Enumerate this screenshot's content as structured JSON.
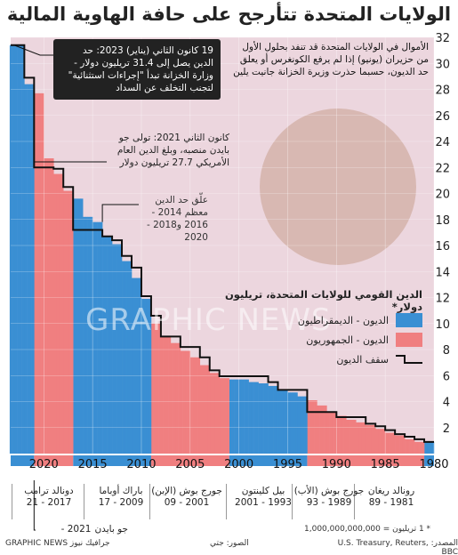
{
  "title": "الولايات المتحدة تتأرجح على حافة الهاوية المالية",
  "intro": "الأموال في الولايات المتحدة قد تنفد بحلول الأول من حزيران (يونيو) إذا لم يرفع الكونغرس أو يعلق حد الديون، حسبما حذرت وزيرة الخزانة جانيت يلين",
  "callout_2023": "19 كانون الثاني (يناير) 2023: حد الدين يصل إلى 31.4 تريليون دولار - وزارة الخزانة تبدأ \"إجراءات استثنائية\" لتجنب التخلف عن السداد",
  "callout_2021": "كانون الثاني 2021: تولى جو بايدن منصبه، وبلغ الدين العام الأمريكي 27.7 تريليون دولار",
  "callout_suspended": "علّق حد الدين معظم 2014 - 2016 و2018 - 2020",
  "legend": {
    "title": "الدين القومي للولايات المتحدة، تريليون دولار*",
    "dem": "الديون - الديمقراطيون",
    "rep": "الديون - الجمهوريون",
    "ceiling": "سقف الديون"
  },
  "presidents": [
    {
      "name": "رونالد ريغان",
      "years": "1981 - 89"
    },
    {
      "name": "جورج بوش (الأب)",
      "years": "1989 - 93"
    },
    {
      "name": "بيل كلينتون",
      "years": "1993 - 2001"
    },
    {
      "name": "جورج بوش (الإبن)",
      "years": "2001 - 09"
    },
    {
      "name": "باراك أوباما",
      "years": "2009 - 17"
    },
    {
      "name": "دونالد ترامب",
      "years": "2017 - 21"
    },
    {
      "name": "جو بايدن",
      "years": "2021 -"
    }
  ],
  "footnote": "* 1 تريليون = 1,000,000,000,000",
  "source": "المصدر: U.S. Treasury, Reuters, BBC",
  "photo": "الصور: جتي",
  "credit": "GRAPHIC NEWS جرافيك نيوز",
  "watermark": "GRAPHIC NEWS",
  "colors": {
    "dem": "#3a8fd3",
    "rep": "#f07f80",
    "bg": "#ecd6de",
    "ceiling": "#111111"
  },
  "chart_data": {
    "type": "area",
    "x_axis": "year (reversed, 2023 on left, 1980 on right)",
    "xlim": [
      1980,
      2023.4
    ],
    "ylim": [
      0,
      32
    ],
    "yticks": [
      2,
      4,
      6,
      8,
      10,
      12,
      14,
      16,
      18,
      20,
      22,
      24,
      26,
      28,
      30,
      32
    ],
    "xticks": [
      1980,
      1985,
      1990,
      1995,
      2000,
      2005,
      2010,
      2015,
      2020
    ],
    "debt": {
      "x": [
        1981,
        1982,
        1983,
        1984,
        1985,
        1986,
        1987,
        1988,
        1989,
        1990,
        1991,
        1992,
        1993,
        1994,
        1995,
        1996,
        1997,
        1998,
        1999,
        2000,
        2001,
        2002,
        2003,
        2004,
        2005,
        2006,
        2007,
        2008,
        2009,
        2010,
        2011,
        2012,
        2013,
        2014,
        2015,
        2016,
        2017,
        2018,
        2019,
        2020,
        2021,
        2022,
        2023
      ],
      "y": [
        0.9,
        1.1,
        1.4,
        1.6,
        1.9,
        2.2,
        2.4,
        2.6,
        2.9,
        3.2,
        3.7,
        4.1,
        4.4,
        4.7,
        4.9,
        5.2,
        5.4,
        5.5,
        5.7,
        5.7,
        5.8,
        6.2,
        6.8,
        7.4,
        7.9,
        8.5,
        9.0,
        10.0,
        11.9,
        13.5,
        14.8,
        16.1,
        16.7,
        17.8,
        18.2,
        19.6,
        20.2,
        21.5,
        22.7,
        27.7,
        28.4,
        31.4,
        31.4
      ]
    },
    "ceiling": {
      "x": [
        1980,
        1981,
        1982,
        1983,
        1984,
        1985,
        1986,
        1987,
        1990,
        1993,
        1996,
        1997,
        2002,
        2003,
        2004,
        2006,
        2008,
        2009,
        2010,
        2011,
        2012,
        2013,
        2014,
        2017,
        2018,
        2019,
        2021,
        2022,
        2023
      ],
      "y": [
        0.9,
        1.1,
        1.3,
        1.5,
        1.8,
        2.1,
        2.3,
        2.8,
        3.2,
        4.9,
        5.5,
        5.95,
        6.4,
        7.4,
        8.2,
        9.0,
        10.6,
        12.1,
        14.3,
        15.2,
        16.4,
        16.7,
        17.2,
        20.5,
        21.9,
        22.0,
        28.9,
        31.4,
        31.4
      ]
    },
    "party_periods": [
      {
        "from": 1980,
        "to": 1981,
        "party": "dem"
      },
      {
        "from": 1981,
        "to": 1993,
        "party": "rep"
      },
      {
        "from": 1993,
        "to": 2001,
        "party": "dem"
      },
      {
        "from": 2001,
        "to": 2009,
        "party": "rep"
      },
      {
        "from": 2009,
        "to": 2017,
        "party": "dem"
      },
      {
        "from": 2017,
        "to": 2021,
        "party": "rep"
      },
      {
        "from": 2021,
        "to": 2023.4,
        "party": "dem"
      }
    ]
  }
}
